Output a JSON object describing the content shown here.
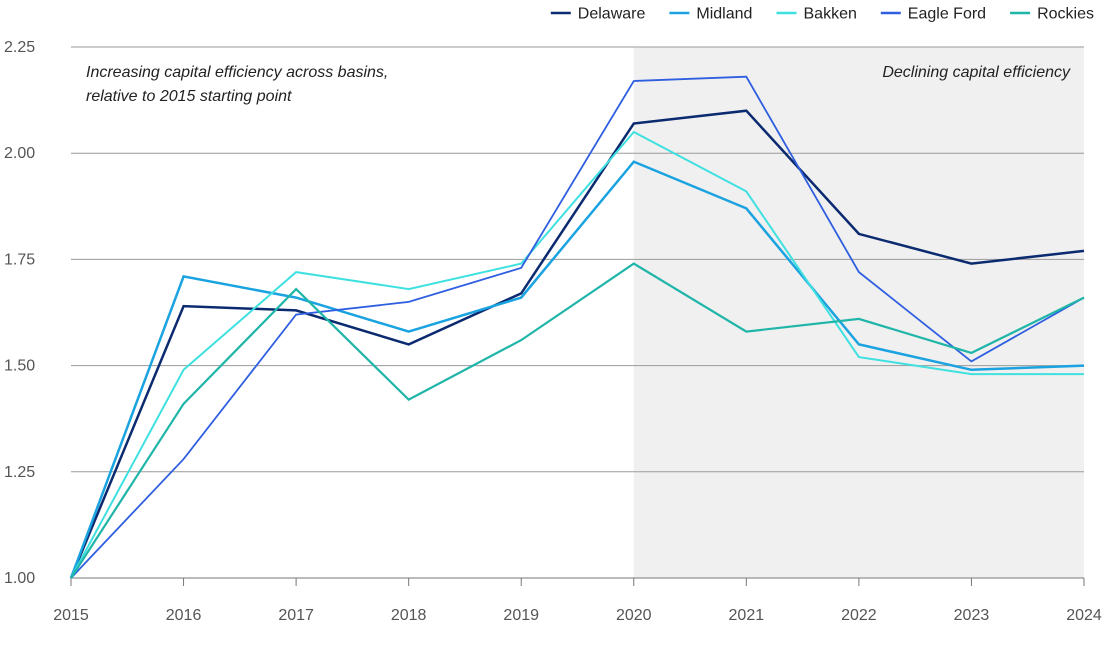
{
  "chart_data": {
    "type": "line",
    "x": [
      "2015",
      "2016",
      "2017",
      "2018",
      "2019",
      "2020",
      "2021",
      "2022",
      "2023",
      "2024"
    ],
    "ylim": [
      1.0,
      2.25
    ],
    "y_ticks": [
      "1.00",
      "1.25",
      "1.50",
      "1.75",
      "2.00",
      "2.25"
    ],
    "grid": "horizontal",
    "legend_position": "top-right",
    "shaded_region": {
      "from": "2020",
      "to": "2024",
      "color": "#f0f0f0"
    },
    "annotations": {
      "left_line1": "Increasing capital efficiency across basins,",
      "left_line2": "relative to 2015 starting point",
      "right": "Declining capital efficiency"
    },
    "series": [
      {
        "name": "Delaware",
        "color": "#0b2a6f",
        "width": 2.5,
        "values": [
          1.0,
          1.64,
          1.63,
          1.55,
          1.67,
          2.07,
          2.1,
          1.81,
          1.74,
          1.77
        ]
      },
      {
        "name": "Midland",
        "color": "#1aa3e0",
        "width": 2.5,
        "values": [
          1.0,
          1.71,
          1.66,
          1.58,
          1.66,
          1.98,
          1.87,
          1.55,
          1.49,
          1.5
        ]
      },
      {
        "name": "Bakken",
        "color": "#3ee0e0",
        "width": 2.0,
        "values": [
          1.0,
          1.49,
          1.72,
          1.68,
          1.74,
          2.05,
          1.91,
          1.52,
          1.48,
          1.48
        ]
      },
      {
        "name": "Eagle Ford",
        "color": "#2f5fe0",
        "width": 1.8,
        "values": [
          1.0,
          1.28,
          1.62,
          1.65,
          1.73,
          2.17,
          2.18,
          1.72,
          1.51,
          1.66
        ]
      },
      {
        "name": "Rockies",
        "color": "#1fb5a8",
        "width": 2.2,
        "values": [
          1.0,
          1.41,
          1.68,
          1.42,
          1.56,
          1.74,
          1.58,
          1.61,
          1.53,
          1.66
        ]
      }
    ]
  }
}
